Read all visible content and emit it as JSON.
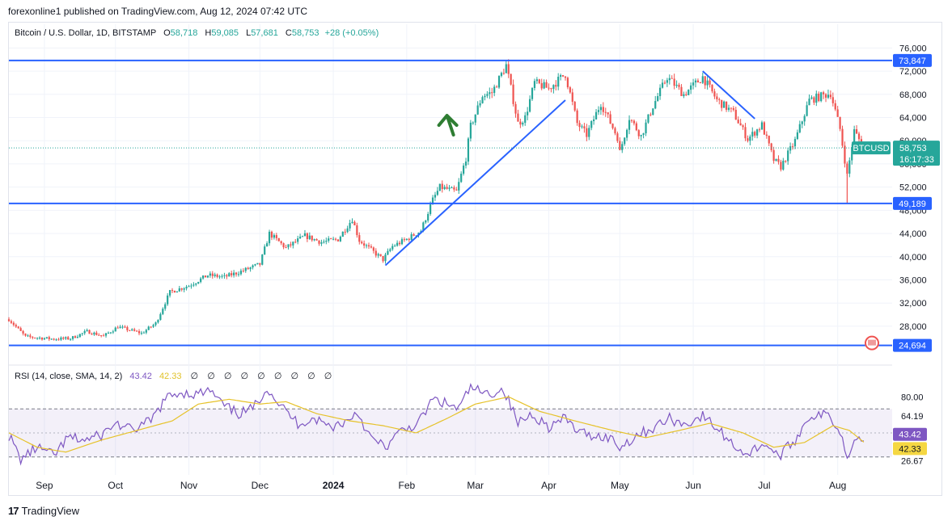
{
  "header": {
    "publisher": "forexonline1 published on TradingView.com, Aug 12, 2024 07:42 UTC"
  },
  "legend": {
    "symbol": "Bitcoin / U.S. Dollar, 1D, BITSTAMP",
    "o_label": "O",
    "o_value": "58,718",
    "h_label": "H",
    "h_value": "59,085",
    "l_label": "L",
    "l_value": "57,681",
    "c_label": "C",
    "c_value": "58,753",
    "change": "+28 (+0.05%)"
  },
  "rsi_legend": {
    "title": "RSI (14, close, SMA, 14, 2)",
    "rsi_value": "43.42",
    "sma_value": "42.33",
    "empty_markers": [
      "∅",
      "∅",
      "∅",
      "∅",
      "∅",
      "∅",
      "∅",
      "∅",
      "∅"
    ]
  },
  "colors": {
    "up": "#26a69a",
    "down": "#ef5350",
    "lines": "#2962ff",
    "arrow": "#2e7d32",
    "rsi": "#7e57c2",
    "rsi_sma": "#e6c229",
    "badge_price": "#26a69a",
    "badge_line": "#2962ff"
  },
  "footer": {
    "brand": "TradingView",
    "logo": "17"
  },
  "chart_data": [
    {
      "type": "candlestick",
      "title": "Bitcoin / U.S. Dollar, 1D, BITSTAMP",
      "ylim": [
        22000,
        78000
      ],
      "y_ticks": [
        "76,000",
        "72,000",
        "68,000",
        "64,000",
        "60,000",
        "56,000",
        "52,000",
        "48,000",
        "44,000",
        "40,000",
        "36,000",
        "32,000",
        "28,000"
      ],
      "y_tick_values": [
        76000,
        72000,
        68000,
        64000,
        60000,
        56000,
        52000,
        48000,
        44000,
        40000,
        36000,
        32000,
        28000
      ],
      "x_labels": [
        "Sep",
        "Oct",
        "Nov",
        "Dec",
        "2024",
        "Feb",
        "Mar",
        "Apr",
        "May",
        "Jun",
        "Jul",
        "Aug"
      ],
      "x_label_dates": [
        "2023-09-01",
        "2023-10-01",
        "2023-11-01",
        "2023-12-01",
        "2024-01-01",
        "2024-02-01",
        "2024-03-01",
        "2024-04-01",
        "2024-05-01",
        "2024-06-01",
        "2024-07-01",
        "2024-08-01"
      ],
      "x_range": [
        "2023-08-17",
        "2024-08-24"
      ],
      "price_path": [
        [
          "2023-08-17",
          29200
        ],
        [
          "2023-08-24",
          26200
        ],
        [
          "2023-09-05",
          25800
        ],
        [
          "2023-09-12",
          25900
        ],
        [
          "2023-09-19",
          27100
        ],
        [
          "2023-09-26",
          26300
        ],
        [
          "2023-10-02",
          27900
        ],
        [
          "2023-10-12",
          26800
        ],
        [
          "2023-10-18",
          28500
        ],
        [
          "2023-10-24",
          33900
        ],
        [
          "2023-11-01",
          35000
        ],
        [
          "2023-11-09",
          36800
        ],
        [
          "2023-11-16",
          36500
        ],
        [
          "2023-11-24",
          37600
        ],
        [
          "2023-12-01",
          38700
        ],
        [
          "2023-12-05",
          44000
        ],
        [
          "2023-12-12",
          41500
        ],
        [
          "2023-12-20",
          43600
        ],
        [
          "2023-12-27",
          42500
        ],
        [
          "2024-01-03",
          43000
        ],
        [
          "2024-01-09",
          46500
        ],
        [
          "2024-01-12",
          42800
        ],
        [
          "2024-01-22",
          39500
        ],
        [
          "2024-01-26",
          41800
        ],
        [
          "2024-02-01",
          43000
        ],
        [
          "2024-02-07",
          44500
        ],
        [
          "2024-02-12",
          49800
        ],
        [
          "2024-02-15",
          52000
        ],
        [
          "2024-02-22",
          51200
        ],
        [
          "2024-02-26",
          57000
        ],
        [
          "2024-02-28",
          62500
        ],
        [
          "2024-03-04",
          67800
        ],
        [
          "2024-03-08",
          68300
        ],
        [
          "2024-03-14",
          73000
        ],
        [
          "2024-03-19",
          63000
        ],
        [
          "2024-03-22",
          64000
        ],
        [
          "2024-03-26",
          70000
        ],
        [
          "2024-04-01",
          69000
        ],
        [
          "2024-04-08",
          71500
        ],
        [
          "2024-04-13",
          63000
        ],
        [
          "2024-04-17",
          61000
        ],
        [
          "2024-04-23",
          66500
        ],
        [
          "2024-04-30",
          60600
        ],
        [
          "2024-05-01",
          58000
        ],
        [
          "2024-05-05",
          64000
        ],
        [
          "2024-05-10",
          60800
        ],
        [
          "2024-05-15",
          66000
        ],
        [
          "2024-05-21",
          71000
        ],
        [
          "2024-05-28",
          68000
        ],
        [
          "2024-06-05",
          71000
        ],
        [
          "2024-06-11",
          67000
        ],
        [
          "2024-06-18",
          64800
        ],
        [
          "2024-06-24",
          60300
        ],
        [
          "2024-06-30",
          62700
        ],
        [
          "2024-07-05",
          56700
        ],
        [
          "2024-07-08",
          55500
        ],
        [
          "2024-07-14",
          60000
        ],
        [
          "2024-07-20",
          67000
        ],
        [
          "2024-07-29",
          68200
        ],
        [
          "2024-08-02",
          62000
        ],
        [
          "2024-08-05",
          54000
        ],
        [
          "2024-08-08",
          61700
        ],
        [
          "2024-08-12",
          58753
        ]
      ],
      "markers": {
        "horizontal_levels": [
          73847,
          49189,
          24694
        ],
        "trendlines": [
          {
            "from": [
              "2024-01-23",
              38500
            ],
            "to": [
              "2024-04-08",
              67000
            ]
          },
          {
            "from": [
              "2024-06-05",
              72000
            ],
            "to": [
              "2024-06-27",
              63800
            ]
          }
        ]
      },
      "price_labels": [
        {
          "text": "73,847",
          "value": 73847
        },
        {
          "text": "49,189",
          "value": 49189
        },
        {
          "text": "24,694",
          "value": 24694
        },
        {
          "text": "58,753",
          "value": 58753
        }
      ],
      "current": {
        "symbol": "BTCUSD",
        "price": "58,753",
        "countdown": "16:17:33"
      }
    },
    {
      "type": "line",
      "title": "RSI (14, close, SMA, 14, 2)",
      "ylim": [
        15,
        93
      ],
      "y_ticks": [
        "80.00",
        "64.19",
        "26.67"
      ],
      "y_tick_values": [
        80,
        64.19,
        26.67
      ],
      "band": [
        70,
        30
      ],
      "midline": 50,
      "value_labels": [
        {
          "text": "43.42",
          "value": 43.42,
          "color": "#7e57c2"
        },
        {
          "text": "42.33",
          "value": 42.33,
          "color": "#f5d742"
        }
      ],
      "series": [
        {
          "color": "#7e57c2",
          "points": [
            [
              "2023-08-17",
              48
            ],
            [
              "2023-08-22",
              28
            ],
            [
              "2023-08-29",
              38
            ],
            [
              "2023-09-05",
              31
            ],
            [
              "2023-09-11",
              46
            ],
            [
              "2023-09-18",
              44
            ],
            [
              "2023-09-25",
              48
            ],
            [
              "2023-10-01",
              58
            ],
            [
              "2023-10-08",
              52
            ],
            [
              "2023-10-16",
              60
            ],
            [
              "2023-10-22",
              78
            ],
            [
              "2023-10-28",
              84
            ],
            [
              "2023-11-04",
              82
            ],
            [
              "2023-11-10",
              85
            ],
            [
              "2023-11-16",
              72
            ],
            [
              "2023-11-22",
              66
            ],
            [
              "2023-11-28",
              70
            ],
            [
              "2023-12-04",
              88
            ],
            [
              "2023-12-10",
              72
            ],
            [
              "2023-12-17",
              58
            ],
            [
              "2023-12-24",
              62
            ],
            [
              "2023-12-31",
              55
            ],
            [
              "2024-01-07",
              60
            ],
            [
              "2024-01-11",
              68
            ],
            [
              "2024-01-17",
              45
            ],
            [
              "2024-01-23",
              38
            ],
            [
              "2024-01-30",
              52
            ],
            [
              "2024-02-06",
              58
            ],
            [
              "2024-02-12",
              78
            ],
            [
              "2024-02-18",
              74
            ],
            [
              "2024-02-23",
              70
            ],
            [
              "2024-02-28",
              88
            ],
            [
              "2024-03-05",
              82
            ],
            [
              "2024-03-13",
              86
            ],
            [
              "2024-03-19",
              58
            ],
            [
              "2024-03-25",
              66
            ],
            [
              "2024-04-01",
              55
            ],
            [
              "2024-04-08",
              62
            ],
            [
              "2024-04-14",
              50
            ],
            [
              "2024-04-20",
              48
            ],
            [
              "2024-04-27",
              46
            ],
            [
              "2024-05-01",
              38
            ],
            [
              "2024-05-08",
              48
            ],
            [
              "2024-05-15",
              54
            ],
            [
              "2024-05-22",
              62
            ],
            [
              "2024-05-28",
              57
            ],
            [
              "2024-06-05",
              64
            ],
            [
              "2024-06-12",
              52
            ],
            [
              "2024-06-18",
              40
            ],
            [
              "2024-06-24",
              32
            ],
            [
              "2024-07-01",
              42
            ],
            [
              "2024-07-07",
              30
            ],
            [
              "2024-07-14",
              44
            ],
            [
              "2024-07-20",
              64
            ],
            [
              "2024-07-28",
              65
            ],
            [
              "2024-08-02",
              52
            ],
            [
              "2024-08-05",
              29
            ],
            [
              "2024-08-08",
              48
            ],
            [
              "2024-08-12",
              43.42
            ]
          ]
        },
        {
          "color": "#e6c229",
          "points": [
            [
              "2023-08-17",
              50
            ],
            [
              "2023-08-29",
              38
            ],
            [
              "2023-09-10",
              34
            ],
            [
              "2023-09-25",
              44
            ],
            [
              "2023-10-10",
              52
            ],
            [
              "2023-10-25",
              60
            ],
            [
              "2023-11-05",
              74
            ],
            [
              "2023-11-18",
              78
            ],
            [
              "2023-12-01",
              74
            ],
            [
              "2023-12-12",
              76
            ],
            [
              "2023-12-25",
              66
            ],
            [
              "2024-01-08",
              60
            ],
            [
              "2024-01-22",
              56
            ],
            [
              "2024-02-05",
              50
            ],
            [
              "2024-02-18",
              62
            ],
            [
              "2024-03-01",
              74
            ],
            [
              "2024-03-15",
              80
            ],
            [
              "2024-03-28",
              68
            ],
            [
              "2024-04-12",
              60
            ],
            [
              "2024-04-28",
              52
            ],
            [
              "2024-05-12",
              46
            ],
            [
              "2024-05-26",
              52
            ],
            [
              "2024-06-08",
              58
            ],
            [
              "2024-06-22",
              50
            ],
            [
              "2024-07-05",
              38
            ],
            [
              "2024-07-18",
              42
            ],
            [
              "2024-07-30",
              56
            ],
            [
              "2024-08-06",
              52
            ],
            [
              "2024-08-12",
              42.33
            ]
          ]
        }
      ]
    }
  ]
}
